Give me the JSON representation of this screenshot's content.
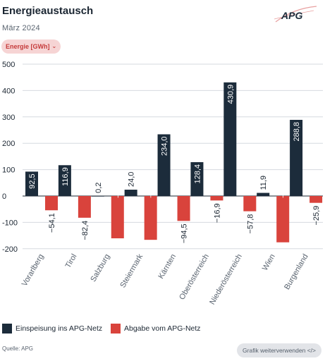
{
  "header": {
    "title": "Energieaustausch",
    "subtitle": "März 2024",
    "logo_text": "APG",
    "unit_selector": "Energie [GWh]"
  },
  "colors": {
    "feed_in": "#1c2c3b",
    "withdrawal": "#d9433c",
    "grid": "#d6dadf",
    "zero_line": "#1b2632"
  },
  "chart_data": {
    "type": "bar",
    "title": "Energieaustausch",
    "subtitle": "März 2024",
    "ylabel": "",
    "xlabel": "",
    "ylim": [
      -200,
      500
    ],
    "yticks": [
      500,
      400,
      300,
      200,
      100,
      0,
      -100,
      -200
    ],
    "categories": [
      "Vorarlberg",
      "Tirol",
      "Salzburg",
      "Steiermark",
      "Kärnten",
      "Oberösterreich",
      "Niederösterreich",
      "Wien",
      "Burgenland"
    ],
    "series": [
      {
        "name": "Einspeisung ins APG-Netz",
        "values": [
          92.5,
          116.9,
          0.2,
          24.0,
          234.0,
          128.4,
          430.9,
          11.9,
          288.8
        ],
        "labels": [
          "92,5",
          "116,9",
          "0,2",
          "24,0",
          "234,0",
          "128,4",
          "430,9",
          "11,9",
          "288,8"
        ]
      },
      {
        "name": "Abgabe vom APG-Netz",
        "values": [
          -54.1,
          -82.4,
          -160.4,
          -166.2,
          -94.5,
          -16.9,
          -57.8,
          -175.6,
          -25.9
        ],
        "labels": [
          "−54,1",
          "−82,4",
          "−160,4",
          "−166,2",
          "−94,5",
          "−16,9",
          "−57,8",
          "−175,6",
          "−25,9"
        ]
      }
    ],
    "grid": true,
    "legend_position": "bottom-left"
  },
  "legend": {
    "feed_in": "Einspeisung ins APG-Netz",
    "withdrawal": "Abgabe vom APG-Netz"
  },
  "footer": {
    "source": "Quelle: APG",
    "reuse_button": "Grafik weiterverwenden </>"
  }
}
